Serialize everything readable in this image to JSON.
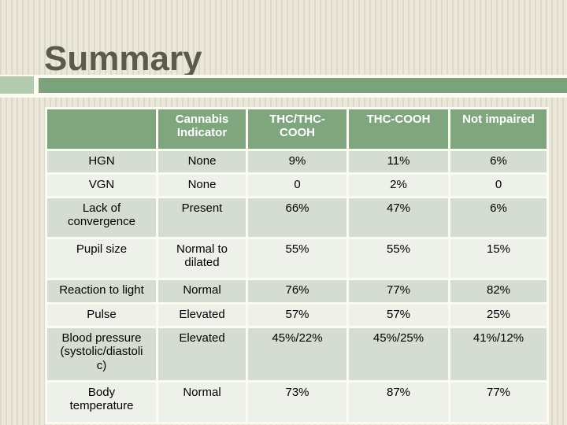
{
  "slide": {
    "title": "Summary"
  },
  "colors": {
    "background": "#EBE8DB",
    "stripe": "#DCD9C9",
    "accent_green": "#7BA37B",
    "accent_light_green": "#B2CBAE",
    "table_header_bg": "#7FA67F",
    "header_text": "#FFFFFF",
    "row_shaded": "#D5DDD2",
    "row_light": "#EEF0EA",
    "title_text": "#5B5A4B",
    "body_text": "#000000",
    "border_white": "#FBFBF2"
  },
  "table": {
    "columns": [
      "",
      "Cannabis\nIndicator",
      "THC/THC-\nCOOH",
      "THC-COOH",
      "Not impaired"
    ],
    "rows": [
      {
        "label": "HGN",
        "values": [
          "None",
          "9%",
          "11%",
          "6%"
        ]
      },
      {
        "label": "VGN",
        "values": [
          "None",
          "0",
          "2%",
          "0"
        ]
      },
      {
        "label": "Lack of\nconvergence",
        "values": [
          "Present",
          "66%",
          "47%",
          "6%"
        ]
      },
      {
        "label": "Pupil size",
        "values": [
          "Normal to\ndilated",
          "55%",
          "55%",
          "15%"
        ]
      },
      {
        "label": "Reaction to light",
        "values": [
          "Normal",
          "76%",
          "77%",
          "82%"
        ]
      },
      {
        "label": "Pulse",
        "values": [
          "Elevated",
          "57%",
          "57%",
          "25%"
        ]
      },
      {
        "label": "Blood pressure\n(systolic/diastoli\nc)",
        "values": [
          "Elevated",
          "45%/22%",
          "45%/25%",
          "41%/12%"
        ]
      },
      {
        "label": "Body\ntemperature",
        "values": [
          "Normal",
          "73%",
          "87%",
          "77%"
        ]
      }
    ]
  }
}
